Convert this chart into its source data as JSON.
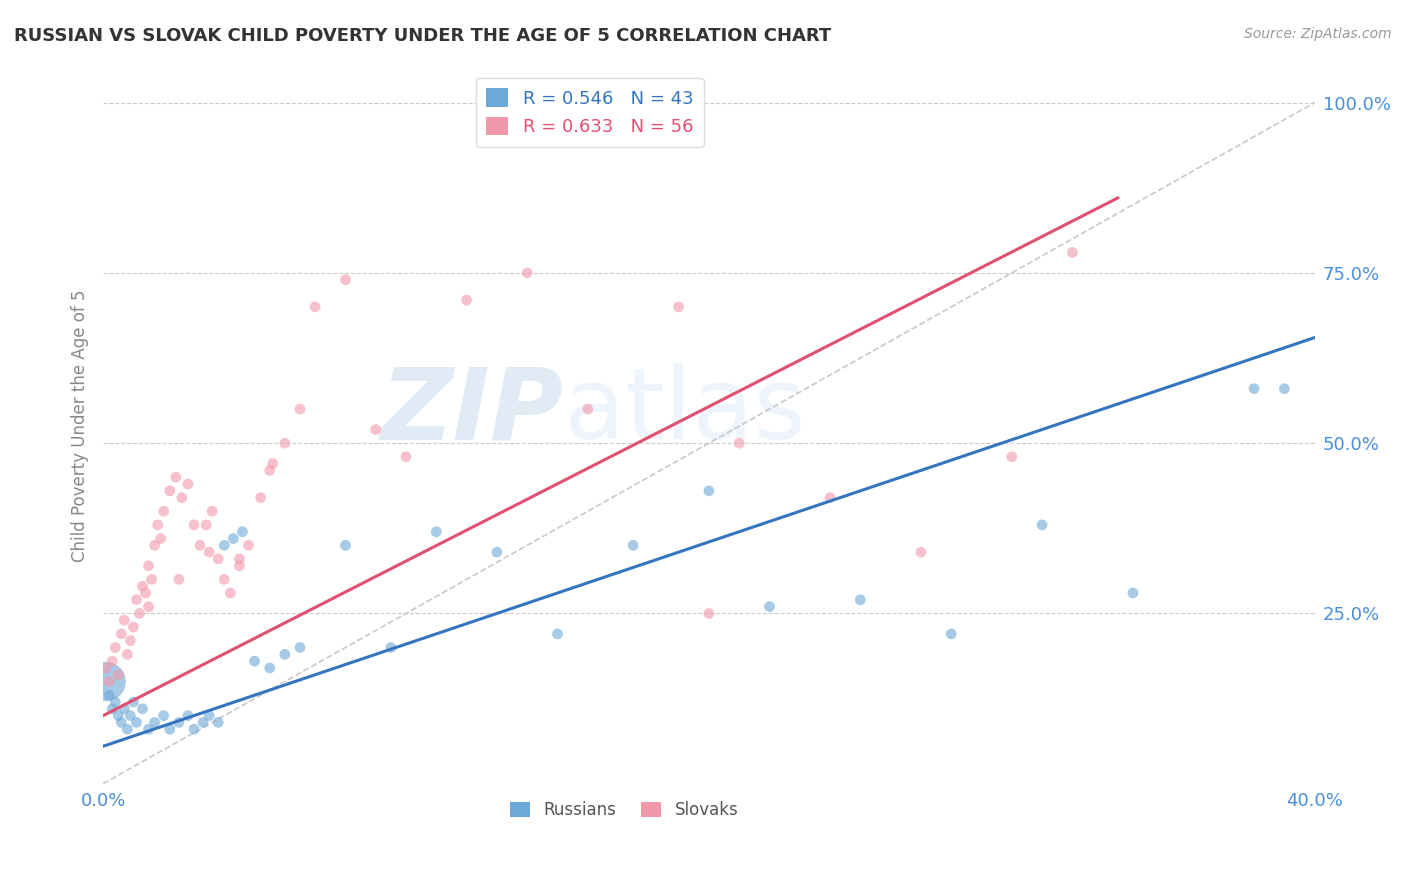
{
  "title": "RUSSIAN VS SLOVAK CHILD POVERTY UNDER THE AGE OF 5 CORRELATION CHART",
  "source_text": "Source: ZipAtlas.com",
  "ylabel": "Child Poverty Under the Age of 5",
  "xlim": [
    0.0,
    0.4
  ],
  "ylim": [
    0.0,
    1.05
  ],
  "xticks": [
    0.0,
    0.08,
    0.16,
    0.24,
    0.32,
    0.4
  ],
  "xticklabels": [
    "0.0%",
    "",
    "",
    "",
    "",
    "40.0%"
  ],
  "ytick_positions": [
    0.25,
    0.5,
    0.75,
    1.0
  ],
  "ytick_labels": [
    "25.0%",
    "50.0%",
    "75.0%",
    "100.0%"
  ],
  "russian_color": "#6ca8d8",
  "slovak_color": "#f198aa",
  "russian_line_color": "#3575c0",
  "slovak_line_color": "#e05070",
  "russian_R": 0.546,
  "russian_N": 43,
  "slovak_R": 0.633,
  "slovak_N": 56,
  "background_color": "#ffffff",
  "grid_color": "#cccccc",
  "watermark_text": "ZIPatlas",
  "ref_line": [
    [
      0.0,
      0.4
    ],
    [
      0.0,
      1.0
    ]
  ],
  "russian_line": [
    [
      0.0,
      0.4
    ],
    [
      0.055,
      0.655
    ]
  ],
  "slovak_line": [
    [
      0.0,
      0.335
    ],
    [
      0.1,
      0.86
    ]
  ],
  "russians_x": [
    0.001,
    0.002,
    0.003,
    0.004,
    0.005,
    0.006,
    0.007,
    0.008,
    0.009,
    0.01,
    0.011,
    0.013,
    0.015,
    0.017,
    0.02,
    0.022,
    0.025,
    0.028,
    0.03,
    0.033,
    0.035,
    0.038,
    0.04,
    0.043,
    0.046,
    0.05,
    0.055,
    0.06,
    0.065,
    0.08,
    0.095,
    0.11,
    0.13,
    0.15,
    0.175,
    0.2,
    0.22,
    0.25,
    0.28,
    0.31,
    0.34,
    0.38,
    0.39
  ],
  "russians_y": [
    0.15,
    0.13,
    0.11,
    0.12,
    0.1,
    0.09,
    0.11,
    0.08,
    0.1,
    0.12,
    0.09,
    0.11,
    0.08,
    0.09,
    0.1,
    0.08,
    0.09,
    0.1,
    0.08,
    0.09,
    0.1,
    0.09,
    0.35,
    0.36,
    0.37,
    0.18,
    0.17,
    0.19,
    0.2,
    0.35,
    0.2,
    0.37,
    0.34,
    0.22,
    0.35,
    0.43,
    0.26,
    0.27,
    0.22,
    0.38,
    0.28,
    0.58,
    0.58
  ],
  "russians_size": [
    800,
    60,
    60,
    60,
    60,
    60,
    60,
    60,
    60,
    60,
    60,
    60,
    60,
    60,
    60,
    60,
    60,
    60,
    60,
    60,
    60,
    60,
    60,
    60,
    60,
    60,
    60,
    60,
    60,
    60,
    60,
    60,
    60,
    60,
    60,
    60,
    60,
    60,
    60,
    60,
    60,
    60,
    60
  ],
  "slovaks_x": [
    0.001,
    0.002,
    0.003,
    0.004,
    0.005,
    0.006,
    0.007,
    0.008,
    0.009,
    0.01,
    0.011,
    0.012,
    0.013,
    0.014,
    0.015,
    0.016,
    0.017,
    0.018,
    0.019,
    0.02,
    0.022,
    0.024,
    0.026,
    0.028,
    0.03,
    0.032,
    0.034,
    0.036,
    0.038,
    0.04,
    0.042,
    0.045,
    0.048,
    0.052,
    0.056,
    0.06,
    0.065,
    0.07,
    0.08,
    0.09,
    0.1,
    0.12,
    0.14,
    0.16,
    0.19,
    0.21,
    0.24,
    0.27,
    0.3,
    0.32,
    0.015,
    0.025,
    0.035,
    0.045,
    0.055,
    0.2
  ],
  "slovaks_y": [
    0.17,
    0.15,
    0.18,
    0.2,
    0.16,
    0.22,
    0.24,
    0.19,
    0.21,
    0.23,
    0.27,
    0.25,
    0.29,
    0.28,
    0.32,
    0.3,
    0.35,
    0.38,
    0.36,
    0.4,
    0.43,
    0.45,
    0.42,
    0.44,
    0.38,
    0.35,
    0.38,
    0.4,
    0.33,
    0.3,
    0.28,
    0.32,
    0.35,
    0.42,
    0.47,
    0.5,
    0.55,
    0.7,
    0.74,
    0.52,
    0.48,
    0.71,
    0.75,
    0.55,
    0.7,
    0.5,
    0.42,
    0.34,
    0.48,
    0.78,
    0.26,
    0.3,
    0.34,
    0.33,
    0.46,
    0.25
  ],
  "slovaks_size": [
    60,
    60,
    60,
    60,
    60,
    60,
    60,
    60,
    60,
    60,
    60,
    60,
    60,
    60,
    60,
    60,
    60,
    60,
    60,
    60,
    60,
    60,
    60,
    60,
    60,
    60,
    60,
    60,
    60,
    60,
    60,
    60,
    60,
    60,
    60,
    60,
    60,
    60,
    60,
    60,
    60,
    60,
    60,
    60,
    60,
    60,
    60,
    60,
    60,
    60,
    60,
    60,
    60,
    60,
    60,
    60
  ]
}
